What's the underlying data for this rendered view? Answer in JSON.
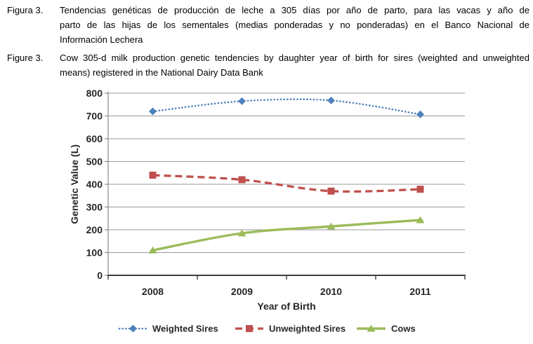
{
  "figure": {
    "caption_es": {
      "label": "Figura 3.",
      "lines": [
        "Tendencias genéticas de producción de leche a 305 días por año de parto, para las vacas y año de",
        "parto de las hijas de los sementales (medias ponderadas y no ponderadas) en el Banco Nacional de",
        "Información Lechera"
      ]
    },
    "caption_en": {
      "label": "Figure 3.",
      "lines": [
        "Cow 305-d milk production genetic tendencies by daughter year of birth for sires (weighted and unweighted",
        "means) registered in the National Dairy Data Bank"
      ]
    }
  },
  "chart_data": {
    "type": "line",
    "categories": [
      "2008",
      "2009",
      "2010",
      "2011"
    ],
    "series": [
      {
        "name": "Weighted Sires",
        "values": [
          720,
          765,
          768,
          707
        ],
        "color": "#4F81BD",
        "line_style": "dotted",
        "marker": "diamond"
      },
      {
        "name": "Unweighted Sires",
        "values": [
          440,
          420,
          370,
          378
        ],
        "color": "#C0504D",
        "line_style": "dashed",
        "marker": "square"
      },
      {
        "name": "Cows",
        "values": [
          110,
          185,
          215,
          243
        ],
        "color": "#9BBB59",
        "line_style": "solid",
        "marker": "triangle"
      }
    ],
    "xlabel": "Year of Birth",
    "ylabel": "Genetic Value (L)",
    "ylim": [
      0,
      800
    ],
    "yticks": [
      0,
      100,
      200,
      300,
      400,
      500,
      600,
      700,
      800
    ],
    "grid": true,
    "legend_position": "bottom",
    "grid_color": "#999999",
    "y_axis_color": "#8c8c8c",
    "x_axis_color": "#3f3f3f",
    "text_color": "#262626"
  }
}
